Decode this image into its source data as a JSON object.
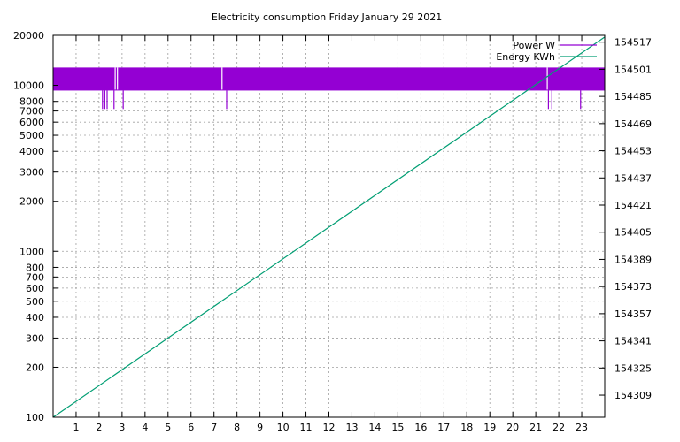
{
  "chart_data": {
    "type": "line",
    "title": "Electricity consumption Friday January 29 2021",
    "xlabel": "",
    "ylabel": "",
    "y2label": "",
    "x_ticks": [
      1,
      2,
      3,
      4,
      5,
      6,
      7,
      8,
      9,
      10,
      11,
      12,
      13,
      14,
      15,
      16,
      17,
      18,
      19,
      20,
      21,
      22,
      23
    ],
    "xlim": [
      0,
      24
    ],
    "y_scale": "log",
    "ylim": [
      100,
      20000
    ],
    "y_ticks": [
      100,
      200,
      300,
      400,
      500,
      600,
      700,
      800,
      1000,
      2000,
      3000,
      4000,
      5000,
      6000,
      7000,
      8000,
      10000,
      20000
    ],
    "y2lim": [
      154296,
      154521
    ],
    "y2_ticks": [
      154309,
      154325,
      154341,
      154357,
      154373,
      154389,
      154405,
      154421,
      154437,
      154453,
      154469,
      154485,
      154501,
      154517
    ],
    "grid": true,
    "legend_position": "top-right",
    "series": [
      {
        "name": "Power W",
        "axis": "left",
        "color": "#9400d3",
        "band": [
          9300,
          12800
        ],
        "spikes_low": [
          {
            "x": 2.15,
            "y": 7200
          },
          {
            "x": 2.25,
            "y": 7200
          },
          {
            "x": 2.35,
            "y": 7200
          },
          {
            "x": 2.65,
            "y": 7200
          },
          {
            "x": 3.05,
            "y": 7200
          },
          {
            "x": 7.55,
            "y": 7200
          },
          {
            "x": 21.55,
            "y": 7200
          },
          {
            "x": 21.7,
            "y": 7200
          },
          {
            "x": 22.95,
            "y": 7200
          }
        ],
        "gaps": [
          2.7,
          2.8,
          7.35,
          21.5
        ]
      },
      {
        "name": "Energy KWh",
        "axis": "right",
        "color": "#009e73",
        "x": [
          0,
          24
        ],
        "values": [
          154296,
          154520
        ]
      }
    ]
  }
}
